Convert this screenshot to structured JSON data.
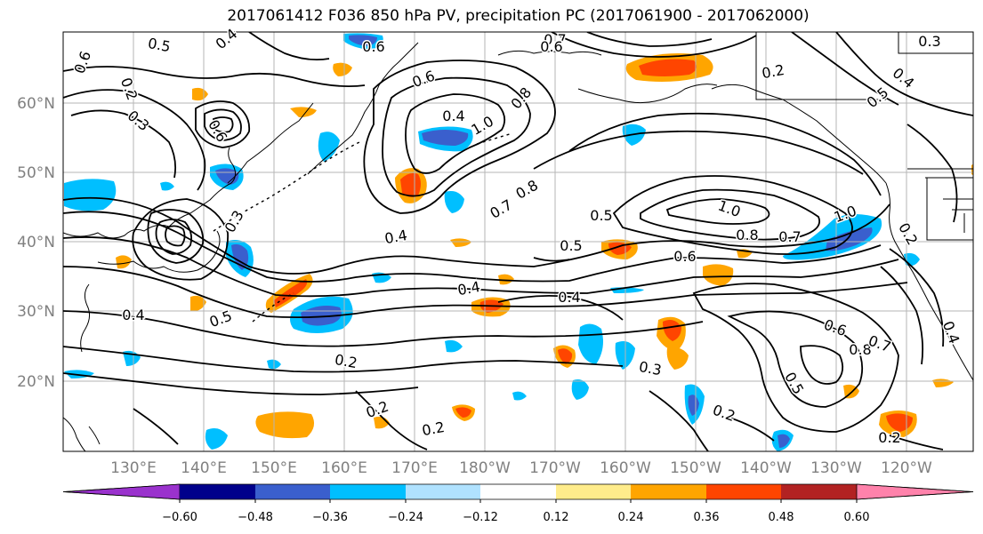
{
  "title": "2017061412 F036 850 hPa PV, precipitation PC (2017061900 - 2017062000)",
  "lat_labels": [
    "60°N",
    "50°N",
    "40°N",
    "30°N",
    "20°N"
  ],
  "lon_labels": [
    "130°E",
    "140°E",
    "150°E",
    "160°E",
    "170°E",
    "180°W",
    "170°W",
    "160°W",
    "150°W",
    "140°W",
    "130°W",
    "120°W"
  ],
  "colorbar": {
    "ticks": [
      "−0.60",
      "−0.48",
      "−0.36",
      "−0.24",
      "−0.12",
      "0.12",
      "0.24",
      "0.36",
      "0.48",
      "0.60"
    ],
    "colors": [
      "#9a32cd",
      "#00008b",
      "#3a5fcd",
      "#00bfff",
      "#b0e2ff",
      "#ffffff",
      "#ffec8b",
      "#ffa500",
      "#ff4500",
      "#b22222",
      "#ff82ab"
    ]
  },
  "contour_labels": [
    "0.6",
    "0.5",
    "0.4",
    "0.6",
    "0.7",
    "0.6",
    "0.2",
    "0.3",
    "0.2",
    "0.3",
    "0.4",
    "0.5",
    "0.6",
    "0.4",
    "1.0",
    "0.8",
    "0.6",
    "0.3",
    "0.8",
    "0.7",
    "0.5",
    "1.0",
    "0.8",
    "0.7",
    "0.6",
    "0.4",
    "0.5",
    "0.4",
    "0.4",
    "0.5",
    "0.4",
    "0.2",
    "0.2",
    "0.2",
    "0.3",
    "0.2",
    "0.6",
    "0.8",
    "0.7",
    "0.5",
    "0.2",
    "0.4",
    "0.2",
    "1.0"
  ]
}
